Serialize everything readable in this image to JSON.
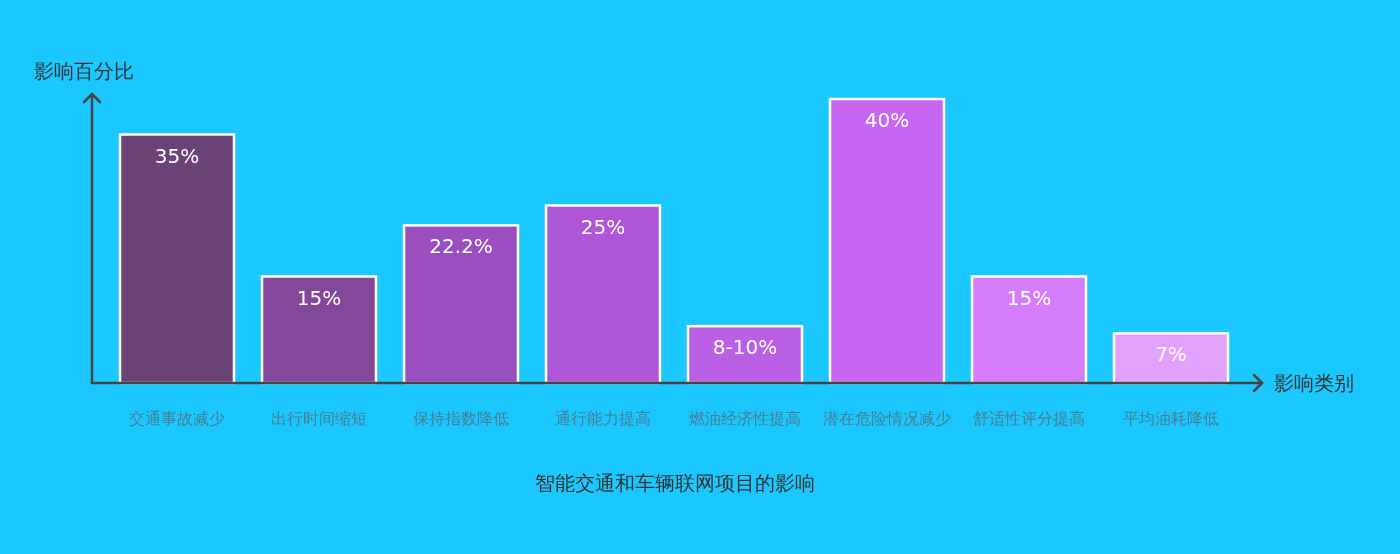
{
  "chart_data": {
    "type": "bar",
    "title": "智能交通和车辆联网项目的影响",
    "xlabel": "影响类别",
    "ylabel": "影响百分比",
    "categories": [
      "交通事故减少",
      "出行时间缩短",
      "保持指数降低",
      "通行能力提高",
      "燃油经济性提高",
      "潜在危险情况减少",
      "舒适性评分提高",
      "平均油耗降低"
    ],
    "values": [
      35,
      15,
      22.2,
      25,
      8,
      40,
      15,
      7
    ],
    "value_labels": [
      "35%",
      "15%",
      "22.2%",
      "25%",
      "8-10%",
      "40%",
      "15%",
      "7%"
    ],
    "colors": [
      "#6b4477",
      "#84489b",
      "#9b4ec0",
      "#ad57d6",
      "#bb5fe6",
      "#c666f2",
      "#d67dfc",
      "#e2a1fb"
    ]
  }
}
